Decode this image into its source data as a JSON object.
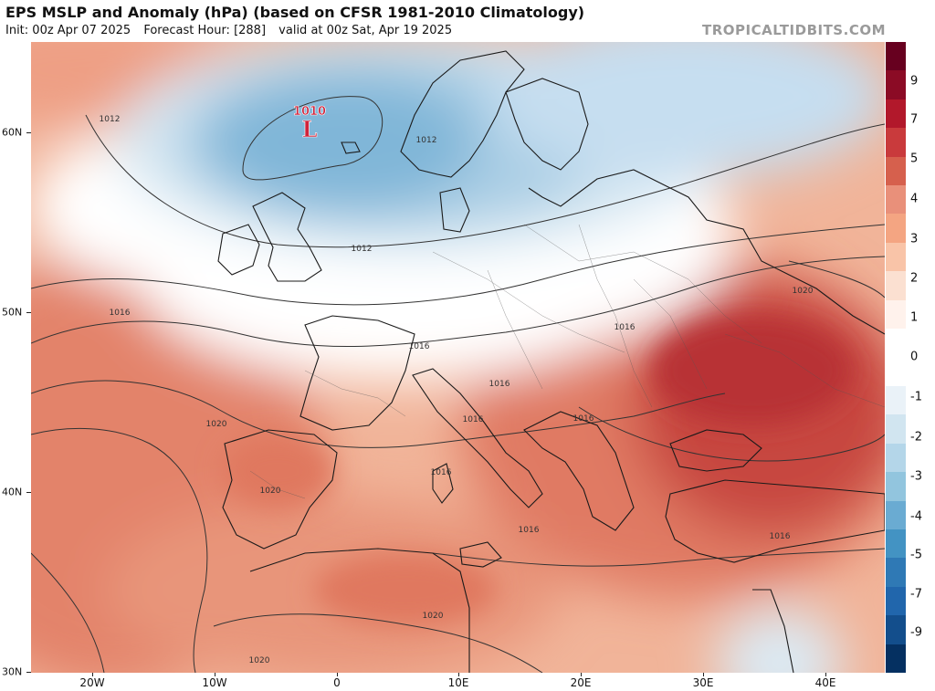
{
  "header": {
    "title": "EPS MSLP and Anomaly (hPa) (based on CFSR 1981-2010 Climatology)",
    "init": "Init: 00z Apr 07 2025",
    "forecast_hour": "Forecast Hour: [288]",
    "valid": "valid at 00z Sat, Apr 19 2025",
    "credit": "TROPICALTIDBITS.COM"
  },
  "map": {
    "lat_labels": [
      "60N",
      "50N",
      "40N",
      "30N"
    ],
    "lon_labels": [
      "20W",
      "10W",
      "0",
      "10E",
      "20E",
      "30E",
      "40E"
    ],
    "low_center": {
      "value": "1010",
      "symbol": "L"
    },
    "isobar_labels": [
      "1012",
      "1012",
      "1012",
      "1016",
      "1016",
      "1016",
      "1016",
      "1016",
      "1016",
      "1016",
      "1016",
      "1016",
      "1020",
      "1020",
      "1020",
      "1020",
      "1020"
    ]
  },
  "colorbar": {
    "labels": [
      "9",
      "7",
      "5",
      "4",
      "3",
      "2",
      "1",
      "0",
      "-1",
      "-2",
      "-3",
      "-4",
      "-5",
      "-7",
      "-9"
    ],
    "colors": [
      "#67001f",
      "#8b0b25",
      "#b2182b",
      "#c93a3c",
      "#d6604d",
      "#e9907a",
      "#f4a582",
      "#f9c4a8",
      "#fbe0d1",
      "#fff2ec",
      "#ffffff",
      "#ffffff",
      "#eaf2f8",
      "#d1e5f0",
      "#b4d6e9",
      "#92c5de",
      "#6aabd2",
      "#4393c3",
      "#2f79b5",
      "#2166ac",
      "#134e8c",
      "#053061"
    ]
  }
}
